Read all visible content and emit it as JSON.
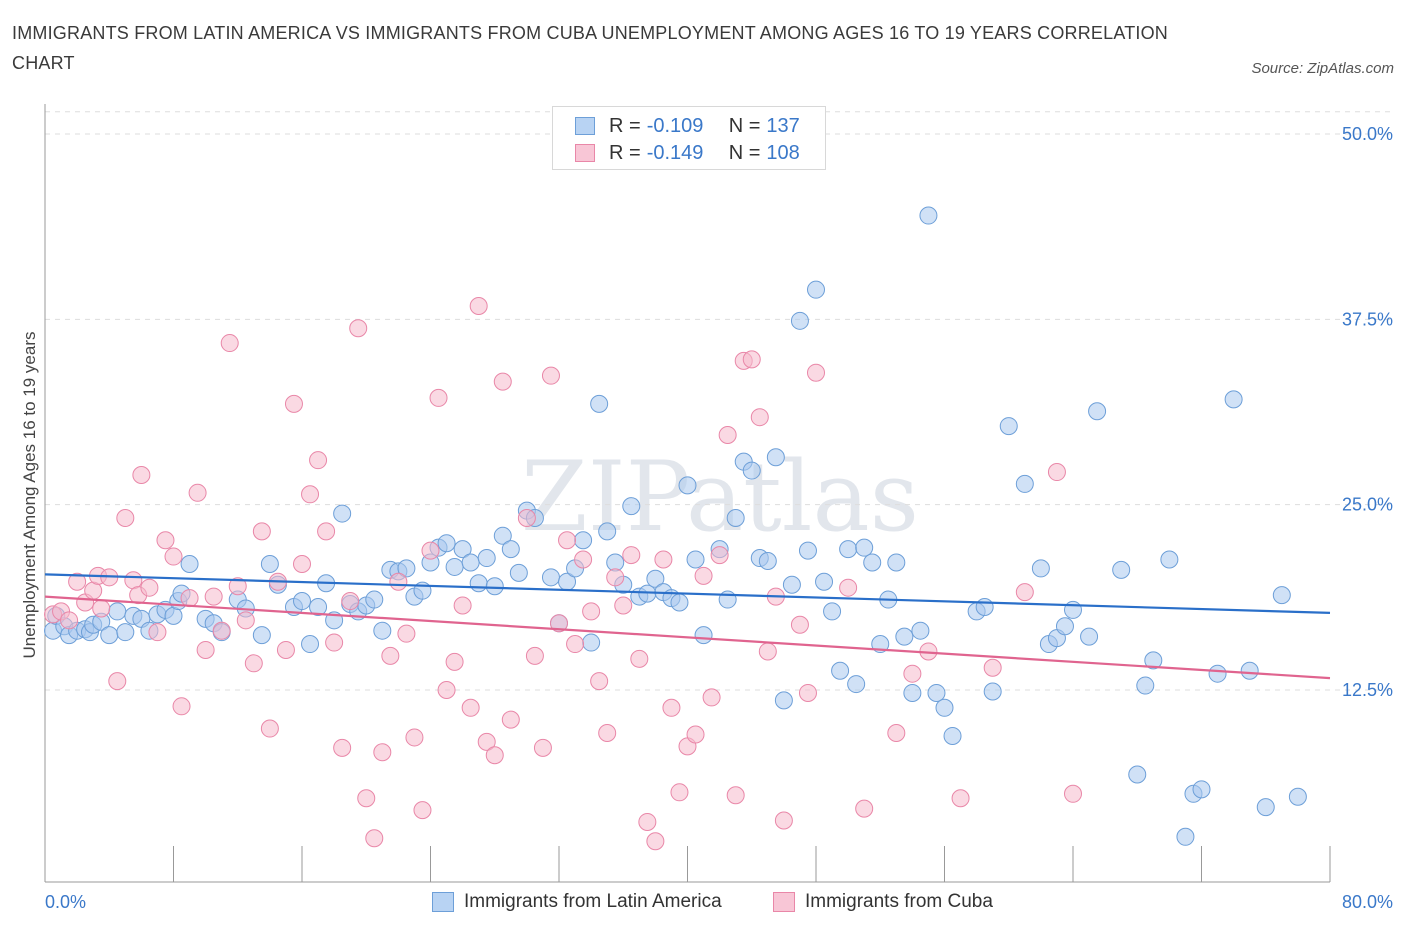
{
  "title": "IMMIGRANTS FROM LATIN AMERICA VS IMMIGRANTS FROM CUBA UNEMPLOYMENT AMONG AGES 16 TO 19 YEARS CORRELATION CHART",
  "source": "Source: ZipAtlas.com",
  "watermark": "ZIPatlas",
  "legend": {
    "rows": [
      {
        "r_label": "R =",
        "r_value": "-0.109",
        "n_label": "N =",
        "n_value": "137"
      },
      {
        "r_label": "R =",
        "r_value": "-0.149",
        "n_label": "N =",
        "n_value": "108"
      }
    ]
  },
  "bottom_legend": [
    "Immigrants from Latin America",
    "Immigrants from Cuba"
  ],
  "colors": {
    "blue_fill": "#a9c8ef",
    "blue_stroke": "#6d9fd8",
    "blue_line": "#2a6fc9",
    "pink_fill": "#f6b9cc",
    "pink_stroke": "#e987a8",
    "pink_line": "#e0648f",
    "accent_text": "#3a78c9"
  },
  "chart_data": {
    "type": "scatter",
    "title": "IMMIGRANTS FROM LATIN AMERICA VS IMMIGRANTS FROM CUBA UNEMPLOYMENT AMONG AGES 16 TO 19 YEARS CORRELATION CHART",
    "xlabel": "",
    "ylabel": "Unemployment Among Ages 16 to 19 years",
    "xlim": [
      0,
      80
    ],
    "ylim": [
      0,
      52
    ],
    "x_tick_labels": [
      "0.0%",
      "80.0%"
    ],
    "y_ticks": [
      12.5,
      25.0,
      37.5,
      50.0
    ],
    "y_tick_labels": [
      "12.5%",
      "25.0%",
      "37.5%",
      "50.0%"
    ],
    "grid": true,
    "legend_position": "top-center",
    "series": [
      {
        "name": "Immigrants from Latin America",
        "trend": {
          "x": [
            0,
            80
          ],
          "y": [
            20.3,
            17.7
          ]
        },
        "points": [
          [
            0.5,
            16.5
          ],
          [
            0.7,
            17.5
          ],
          [
            1.2,
            16.8
          ],
          [
            1.5,
            16.2
          ],
          [
            2.0,
            16.5
          ],
          [
            2.5,
            16.6
          ],
          [
            2.8,
            16.4
          ],
          [
            3.0,
            16.9
          ],
          [
            3.5,
            17.1
          ],
          [
            4.0,
            16.2
          ],
          [
            4.5,
            17.8
          ],
          [
            5.0,
            16.4
          ],
          [
            5.5,
            17.5
          ],
          [
            6.0,
            17.3
          ],
          [
            6.5,
            16.5
          ],
          [
            7.0,
            17.6
          ],
          [
            7.5,
            17.9
          ],
          [
            8.0,
            17.5
          ],
          [
            8.3,
            18.5
          ],
          [
            8.5,
            19.0
          ],
          [
            9.0,
            21.0
          ],
          [
            10.0,
            17.3
          ],
          [
            10.5,
            17.0
          ],
          [
            11.0,
            16.4
          ],
          [
            12.0,
            18.6
          ],
          [
            12.5,
            18.0
          ],
          [
            13.5,
            16.2
          ],
          [
            14.0,
            21.0
          ],
          [
            14.5,
            19.6
          ],
          [
            15.5,
            18.1
          ],
          [
            16.0,
            18.5
          ],
          [
            16.5,
            15.6
          ],
          [
            17.0,
            18.1
          ],
          [
            17.5,
            19.7
          ],
          [
            18.0,
            17.2
          ],
          [
            18.5,
            24.4
          ],
          [
            19.0,
            18.3
          ],
          [
            19.5,
            17.8
          ],
          [
            20.0,
            18.2
          ],
          [
            20.5,
            18.6
          ],
          [
            21.0,
            16.5
          ],
          [
            21.5,
            20.6
          ],
          [
            22.0,
            20.5
          ],
          [
            22.5,
            20.7
          ],
          [
            23.0,
            18.8
          ],
          [
            23.5,
            19.2
          ],
          [
            24.0,
            21.1
          ],
          [
            24.5,
            22.1
          ],
          [
            25.0,
            22.4
          ],
          [
            25.5,
            20.8
          ],
          [
            26.0,
            22.0
          ],
          [
            26.5,
            21.1
          ],
          [
            27.0,
            19.7
          ],
          [
            27.5,
            21.4
          ],
          [
            28.0,
            19.5
          ],
          [
            28.5,
            22.9
          ],
          [
            29.0,
            22.0
          ],
          [
            29.5,
            20.4
          ],
          [
            30.0,
            24.6
          ],
          [
            30.5,
            24.1
          ],
          [
            31.5,
            20.1
          ],
          [
            32.0,
            17.0
          ],
          [
            32.5,
            19.8
          ],
          [
            33.0,
            20.7
          ],
          [
            33.5,
            22.6
          ],
          [
            34.0,
            15.7
          ],
          [
            34.5,
            31.8
          ],
          [
            35.0,
            23.2
          ],
          [
            35.5,
            21.1
          ],
          [
            36.0,
            19.6
          ],
          [
            36.5,
            24.9
          ],
          [
            37.0,
            18.8
          ],
          [
            37.5,
            19.0
          ],
          [
            38.0,
            20.0
          ],
          [
            38.5,
            19.1
          ],
          [
            39.0,
            18.7
          ],
          [
            39.5,
            18.4
          ],
          [
            40.0,
            26.3
          ],
          [
            40.5,
            21.3
          ],
          [
            41.0,
            16.2
          ],
          [
            42.0,
            22.0
          ],
          [
            42.5,
            18.6
          ],
          [
            43.0,
            24.1
          ],
          [
            43.5,
            27.9
          ],
          [
            44.0,
            27.3
          ],
          [
            44.5,
            21.4
          ],
          [
            45.0,
            21.2
          ],
          [
            45.5,
            28.2
          ],
          [
            46.0,
            11.8
          ],
          [
            46.5,
            19.6
          ],
          [
            47.0,
            37.4
          ],
          [
            47.5,
            21.9
          ],
          [
            48.0,
            39.5
          ],
          [
            48.5,
            19.8
          ],
          [
            49.0,
            17.8
          ],
          [
            49.5,
            13.8
          ],
          [
            50.0,
            22.0
          ],
          [
            50.5,
            12.9
          ],
          [
            51.0,
            22.1
          ],
          [
            51.5,
            21.1
          ],
          [
            52.0,
            15.6
          ],
          [
            52.5,
            18.6
          ],
          [
            53.0,
            21.1
          ],
          [
            53.5,
            16.1
          ],
          [
            54.0,
            12.3
          ],
          [
            54.5,
            16.5
          ],
          [
            55.0,
            44.5
          ],
          [
            55.5,
            12.3
          ],
          [
            56.0,
            11.3
          ],
          [
            56.5,
            9.4
          ],
          [
            58.0,
            17.8
          ],
          [
            58.5,
            18.1
          ],
          [
            59.0,
            12.4
          ],
          [
            60.0,
            30.3
          ],
          [
            61.0,
            26.4
          ],
          [
            62.0,
            20.7
          ],
          [
            62.5,
            15.6
          ],
          [
            63.0,
            16.0
          ],
          [
            63.5,
            16.8
          ],
          [
            64.0,
            17.9
          ],
          [
            65.0,
            16.1
          ],
          [
            65.5,
            31.3
          ],
          [
            67.0,
            20.6
          ],
          [
            68.0,
            6.8
          ],
          [
            68.5,
            12.8
          ],
          [
            69.0,
            14.5
          ],
          [
            70.0,
            21.3
          ],
          [
            71.0,
            2.6
          ],
          [
            71.5,
            5.5
          ],
          [
            72.0,
            5.8
          ],
          [
            73.0,
            13.6
          ],
          [
            74.0,
            32.1
          ],
          [
            75.0,
            13.8
          ],
          [
            76.0,
            4.6
          ],
          [
            77.0,
            18.9
          ],
          [
            78.0,
            5.3
          ]
        ]
      },
      {
        "name": "Immigrants from Cuba",
        "trend": {
          "x": [
            0,
            80
          ],
          "y": [
            18.8,
            13.3
          ]
        },
        "points": [
          [
            0.5,
            17.6
          ],
          [
            1.0,
            17.8
          ],
          [
            1.5,
            17.2
          ],
          [
            2.0,
            19.8
          ],
          [
            2.5,
            18.4
          ],
          [
            3.0,
            19.2
          ],
          [
            3.3,
            20.2
          ],
          [
            3.5,
            18.0
          ],
          [
            4.0,
            20.1
          ],
          [
            4.5,
            13.1
          ],
          [
            5.0,
            24.1
          ],
          [
            5.5,
            19.9
          ],
          [
            5.8,
            18.9
          ],
          [
            6.0,
            27.0
          ],
          [
            6.5,
            19.4
          ],
          [
            7.0,
            16.4
          ],
          [
            7.5,
            22.6
          ],
          [
            8.0,
            21.5
          ],
          [
            8.5,
            11.4
          ],
          [
            9.0,
            18.7
          ],
          [
            9.5,
            25.8
          ],
          [
            10.0,
            15.2
          ],
          [
            10.5,
            18.8
          ],
          [
            11.0,
            16.5
          ],
          [
            11.5,
            35.9
          ],
          [
            12.0,
            19.5
          ],
          [
            12.5,
            17.2
          ],
          [
            13.0,
            14.3
          ],
          [
            13.5,
            23.2
          ],
          [
            14.0,
            9.9
          ],
          [
            14.5,
            19.8
          ],
          [
            15.0,
            15.2
          ],
          [
            15.5,
            31.8
          ],
          [
            16.0,
            21.0
          ],
          [
            16.5,
            25.7
          ],
          [
            17.0,
            28.0
          ],
          [
            17.5,
            23.2
          ],
          [
            18.0,
            15.7
          ],
          [
            18.5,
            8.6
          ],
          [
            19.0,
            18.5
          ],
          [
            19.5,
            36.9
          ],
          [
            20.0,
            5.2
          ],
          [
            20.5,
            2.5
          ],
          [
            21.0,
            8.3
          ],
          [
            21.5,
            14.8
          ],
          [
            22.0,
            19.8
          ],
          [
            22.5,
            16.3
          ],
          [
            23.0,
            9.3
          ],
          [
            23.5,
            4.4
          ],
          [
            24.0,
            21.9
          ],
          [
            24.5,
            32.2
          ],
          [
            25.0,
            12.5
          ],
          [
            25.5,
            14.4
          ],
          [
            26.0,
            18.2
          ],
          [
            26.5,
            11.3
          ],
          [
            27.0,
            38.4
          ],
          [
            27.5,
            9.0
          ],
          [
            28.0,
            8.1
          ],
          [
            28.5,
            33.3
          ],
          [
            29.0,
            10.5
          ],
          [
            30.0,
            24.1
          ],
          [
            30.5,
            14.8
          ],
          [
            31.0,
            8.6
          ],
          [
            31.5,
            33.7
          ],
          [
            32.0,
            17.0
          ],
          [
            32.5,
            22.6
          ],
          [
            33.0,
            15.6
          ],
          [
            33.5,
            21.3
          ],
          [
            34.0,
            17.8
          ],
          [
            34.5,
            13.1
          ],
          [
            35.0,
            9.6
          ],
          [
            35.5,
            20.1
          ],
          [
            36.0,
            18.2
          ],
          [
            36.5,
            21.6
          ],
          [
            37.0,
            14.6
          ],
          [
            37.5,
            3.6
          ],
          [
            38.0,
            2.3
          ],
          [
            38.5,
            21.3
          ],
          [
            39.0,
            11.3
          ],
          [
            39.5,
            5.6
          ],
          [
            40.0,
            8.7
          ],
          [
            40.5,
            9.5
          ],
          [
            41.0,
            20.2
          ],
          [
            41.5,
            12.0
          ],
          [
            42.0,
            21.6
          ],
          [
            42.5,
            29.7
          ],
          [
            43.0,
            5.4
          ],
          [
            43.5,
            34.7
          ],
          [
            44.0,
            34.8
          ],
          [
            44.5,
            30.9
          ],
          [
            45.0,
            15.1
          ],
          [
            45.5,
            18.8
          ],
          [
            46.0,
            3.7
          ],
          [
            47.0,
            16.9
          ],
          [
            47.5,
            12.3
          ],
          [
            48.0,
            33.9
          ],
          [
            50.0,
            19.4
          ],
          [
            51.0,
            4.5
          ],
          [
            53.0,
            9.6
          ],
          [
            54.0,
            13.6
          ],
          [
            55.0,
            15.1
          ],
          [
            57.0,
            5.2
          ],
          [
            59.0,
            14.0
          ],
          [
            61.0,
            19.1
          ],
          [
            63.0,
            27.2
          ],
          [
            64.0,
            5.5
          ]
        ]
      }
    ]
  }
}
